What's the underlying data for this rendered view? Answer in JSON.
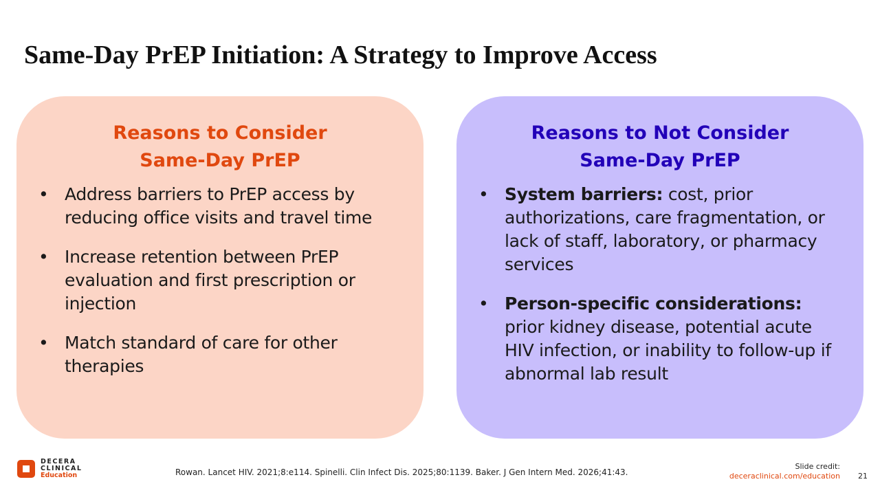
{
  "title": "Same-Day PrEP Initiation: A Strategy to Improve Access",
  "left": {
    "heading_line1": "Reasons to Consider",
    "heading_line2": "Same-Day PrEP",
    "bullets": [
      "Address barriers to PrEP access by reducing office visits and travel time",
      "Increase retention between PrEP evaluation and first prescription or injection",
      "Match standard of care for other therapies"
    ]
  },
  "right": {
    "heading_line1": "Reasons to Not Consider",
    "heading_line2": "Same-Day PrEP",
    "bullets": [
      {
        "bold": "System barriers:",
        "text": " cost, prior authorizations, care fragmentation, or lack of staff, laboratory, or pharmacy services"
      },
      {
        "bold": "Person-specific considerations:",
        "text": " prior kidney disease, potential acute HIV infection, or inability to follow-up if abnormal lab result"
      }
    ]
  },
  "footer": {
    "logo_line1": "DECERA",
    "logo_line2": "CLINICAL",
    "logo_line3": "Education",
    "references": "Rowan. Lancet HIV. 2021;8:e114. Spinelli. Clin Infect Dis. 2025;80:1139. Baker. J Gen Intern Med. 2026;41:43.",
    "credit_label": "Slide credit:",
    "credit_link": "deceraclinical.com/education",
    "page_number": "21"
  }
}
